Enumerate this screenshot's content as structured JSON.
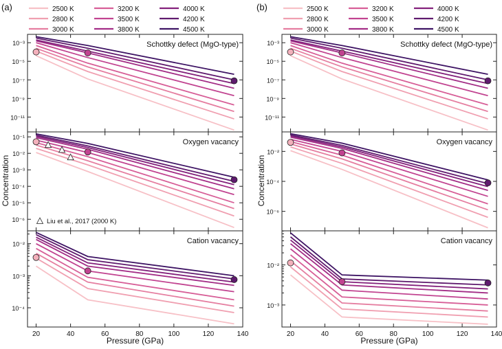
{
  "figure": {
    "xlabel": "Pressure (GPa)",
    "ylabel": "Concentration",
    "x_ticks": [
      20,
      40,
      60,
      80,
      100,
      120,
      140
    ],
    "xlim": [
      15,
      140
    ],
    "legend": {
      "labels": [
        "2500 K",
        "2800 K",
        "3000 K",
        "3200 K",
        "3500 K",
        "3800 K",
        "4000 K",
        "4200 K",
        "4500 K"
      ],
      "colors": [
        "#f7c0c6",
        "#f09fb0",
        "#e57ea0",
        "#d75e97",
        "#c14390",
        "#a32d86",
        "#82207b",
        "#5f1a6e",
        "#3e1464"
      ]
    },
    "liu_label": "Liu et al., 2017 (2000 K)"
  },
  "chart_data": [
    {
      "panel": "a",
      "panel_label": "(a)",
      "type": "line",
      "x": [
        20,
        50,
        135
      ],
      "subplots": [
        {
          "name": "schottky",
          "title": "Schottky defect (MgO-type)",
          "yscale": "log",
          "ylim_exp": [
            -12.6,
            -2.1
          ],
          "ticks": [
            {
              "exp": -3,
              "label": "10⁻³"
            },
            {
              "exp": -5,
              "label": "10⁻⁵"
            },
            {
              "exp": -7,
              "label": "10⁻⁷"
            },
            {
              "exp": -9,
              "label": "10⁻⁹"
            },
            {
              "exp": -11,
              "label": "10⁻¹¹"
            }
          ],
          "series": [
            {
              "name": "2500 K",
              "log10": [
                -4.4,
                -6.9,
                -12.4
              ]
            },
            {
              "name": "2800 K",
              "log10": [
                -3.9,
                -6.1,
                -11.2
              ]
            },
            {
              "name": "3000 K",
              "log10": [
                -3.6,
                -5.6,
                -10.4
              ]
            },
            {
              "name": "3200 K",
              "log10": [
                -3.3,
                -5.2,
                -9.7
              ]
            },
            {
              "name": "3500 K",
              "log10": [
                -3.0,
                -4.6,
                -8.7
              ]
            },
            {
              "name": "3800 K",
              "log10": [
                -2.8,
                -4.1,
                -7.9
              ]
            },
            {
              "name": "4000 K",
              "log10": [
                -2.7,
                -3.9,
                -7.4
              ]
            },
            {
              "name": "4200 K",
              "log10": [
                -2.5,
                -3.6,
                -7.0
              ]
            },
            {
              "name": "4500 K",
              "log10": [
                -2.35,
                -3.3,
                -6.4
              ]
            }
          ],
          "markers": [
            {
              "x": 20,
              "log10": -4.0,
              "color": "#f3b0bb"
            },
            {
              "x": 50,
              "log10": -4.1,
              "color": "#c14390"
            },
            {
              "x": 135,
              "log10": -7.1,
              "color": "#5f1a6e"
            }
          ]
        },
        {
          "name": "oxygen",
          "title": "Oxygen vacancy",
          "yscale": "log",
          "ylim_exp": [
            -6.7,
            -0.7
          ],
          "ticks": [
            {
              "exp": -1,
              "label": "10⁻¹"
            },
            {
              "exp": -2,
              "label": "10⁻²"
            },
            {
              "exp": -3,
              "label": "10⁻³"
            },
            {
              "exp": -4,
              "label": "10⁻⁴"
            },
            {
              "exp": -5,
              "label": "10⁻⁵"
            },
            {
              "exp": -6,
              "label": "10⁻⁶"
            }
          ],
          "series": [
            {
              "name": "2500 K",
              "log10": [
                -1.95,
                -3.1,
                -6.5
              ]
            },
            {
              "name": "2800 K",
              "log10": [
                -1.7,
                -2.7,
                -5.8
              ]
            },
            {
              "name": "3000 K",
              "log10": [
                -1.5,
                -2.45,
                -5.35
              ]
            },
            {
              "name": "3200 K",
              "log10": [
                -1.35,
                -2.2,
                -5.0
              ]
            },
            {
              "name": "3500 K",
              "log10": [
                -1.2,
                -1.95,
                -4.5
              ]
            },
            {
              "name": "3800 K",
              "log10": [
                -1.05,
                -1.75,
                -4.15
              ]
            },
            {
              "name": "4000 K",
              "log10": [
                -0.97,
                -1.65,
                -3.9
              ]
            },
            {
              "name": "4200 K",
              "log10": [
                -0.9,
                -1.55,
                -3.7
              ]
            },
            {
              "name": "4500 K",
              "log10": [
                -0.82,
                -1.4,
                -3.45
              ]
            }
          ],
          "markers": [
            {
              "x": 20,
              "log10": -1.3,
              "color": "#f3b0bb"
            },
            {
              "x": 50,
              "log10": -1.92,
              "color": "#c14390"
            },
            {
              "x": 135,
              "log10": -3.6,
              "color": "#5f1a6e"
            }
          ],
          "liu_points": [
            {
              "x": 27,
              "log10": -1.5
            },
            {
              "x": 35,
              "log10": -1.8
            },
            {
              "x": 40,
              "log10": -2.25
            }
          ]
        },
        {
          "name": "cation",
          "title": "Cation vacancy",
          "yscale": "log",
          "ylim_exp": [
            -4.6,
            -1.6
          ],
          "ticks": [
            {
              "exp": -2,
              "label": "10⁻²"
            },
            {
              "exp": -3,
              "label": "10⁻³"
            },
            {
              "exp": -4,
              "label": "10⁻⁴"
            }
          ],
          "series": [
            {
              "name": "2500 K",
              "log10": [
                -2.7,
                -3.75,
                -4.5
              ]
            },
            {
              "name": "2800 K",
              "log10": [
                -2.45,
                -3.4,
                -4.15
              ]
            },
            {
              "name": "3000 K",
              "log10": [
                -2.3,
                -3.2,
                -3.95
              ]
            },
            {
              "name": "3200 K",
              "log10": [
                -2.15,
                -3.05,
                -3.75
              ]
            },
            {
              "name": "3500 K",
              "log10": [
                -2.0,
                -2.85,
                -3.5
              ]
            },
            {
              "name": "3800 K",
              "log10": [
                -1.87,
                -2.7,
                -3.3
              ]
            },
            {
              "name": "4000 K",
              "log10": [
                -1.8,
                -2.6,
                -3.2
              ]
            },
            {
              "name": "4200 K",
              "log10": [
                -1.72,
                -2.5,
                -3.1
              ]
            },
            {
              "name": "4500 K",
              "log10": [
                -1.65,
                -2.4,
                -3.0
              ]
            }
          ],
          "markers": [
            {
              "x": 20,
              "log10": -2.43,
              "color": "#f3b0bb"
            },
            {
              "x": 50,
              "log10": -2.85,
              "color": "#c14390"
            },
            {
              "x": 135,
              "log10": -3.12,
              "color": "#5f1a6e"
            }
          ]
        }
      ]
    },
    {
      "panel": "b",
      "panel_label": "(b)",
      "type": "line",
      "x": [
        20,
        50,
        135
      ],
      "subplots": [
        {
          "name": "schottky",
          "title": "Schottky defect (MgO-type)",
          "yscale": "log",
          "ylim_exp": [
            -12.6,
            -2.1
          ],
          "ticks": [
            {
              "exp": -3,
              "label": "10⁻³"
            },
            {
              "exp": -5,
              "label": "10⁻⁵"
            },
            {
              "exp": -7,
              "label": "10⁻⁷"
            },
            {
              "exp": -9,
              "label": "10⁻⁹"
            },
            {
              "exp": -11,
              "label": "10⁻¹¹"
            }
          ],
          "series": [
            {
              "name": "2500 K",
              "log10": [
                -4.4,
                -6.9,
                -12.4
              ]
            },
            {
              "name": "2800 K",
              "log10": [
                -3.9,
                -6.1,
                -11.2
              ]
            },
            {
              "name": "3000 K",
              "log10": [
                -3.6,
                -5.6,
                -10.4
              ]
            },
            {
              "name": "3200 K",
              "log10": [
                -3.3,
                -5.2,
                -9.7
              ]
            },
            {
              "name": "3500 K",
              "log10": [
                -3.0,
                -4.6,
                -8.7
              ]
            },
            {
              "name": "3800 K",
              "log10": [
                -2.8,
                -4.1,
                -7.9
              ]
            },
            {
              "name": "4000 K",
              "log10": [
                -2.7,
                -3.9,
                -7.4
              ]
            },
            {
              "name": "4200 K",
              "log10": [
                -2.5,
                -3.6,
                -7.0
              ]
            },
            {
              "name": "4500 K",
              "log10": [
                -2.35,
                -3.3,
                -6.4
              ]
            }
          ],
          "markers": [
            {
              "x": 20,
              "log10": -4.0,
              "color": "#f3b0bb"
            },
            {
              "x": 50,
              "log10": -4.1,
              "color": "#c14390"
            },
            {
              "x": 135,
              "log10": -7.1,
              "color": "#5f1a6e"
            }
          ]
        },
        {
          "name": "oxygen",
          "title": "Oxygen vacancy",
          "yscale": "log",
          "ylim_exp": [
            -7.3,
            -0.7
          ],
          "ticks": [
            {
              "exp": -2,
              "label": "10⁻²"
            },
            {
              "exp": -4,
              "label": "10⁻⁴"
            },
            {
              "exp": -6,
              "label": "10⁻⁶"
            }
          ],
          "series": [
            {
              "name": "2500 K",
              "log10": [
                -1.95,
                -3.2,
                -7.1
              ]
            },
            {
              "name": "2800 K",
              "log10": [
                -1.7,
                -2.8,
                -6.4
              ]
            },
            {
              "name": "3000 K",
              "log10": [
                -1.5,
                -2.5,
                -5.9
              ]
            },
            {
              "name": "3200 K",
              "log10": [
                -1.35,
                -2.25,
                -5.5
              ]
            },
            {
              "name": "3500 K",
              "log10": [
                -1.2,
                -2.0,
                -5.0
              ]
            },
            {
              "name": "3800 K",
              "log10": [
                -1.05,
                -1.8,
                -4.6
              ]
            },
            {
              "name": "4000 K",
              "log10": [
                -0.97,
                -1.7,
                -4.35
              ]
            },
            {
              "name": "4200 K",
              "log10": [
                -0.9,
                -1.6,
                -4.15
              ]
            },
            {
              "name": "4500 K",
              "log10": [
                -0.82,
                -1.45,
                -3.9
              ]
            }
          ],
          "markers": [
            {
              "x": 20,
              "log10": -1.4,
              "color": "#f3b0bb"
            },
            {
              "x": 50,
              "log10": -2.1,
              "color": "#c14390"
            },
            {
              "x": 135,
              "log10": -4.1,
              "color": "#5f1a6e"
            }
          ]
        },
        {
          "name": "cation",
          "title": "Cation vacancy",
          "yscale": "log",
          "ylim_exp": [
            -3.55,
            -1.15
          ],
          "ticks": [
            {
              "exp": -2,
              "label": "10⁻²"
            },
            {
              "exp": -3,
              "label": "10⁻³"
            }
          ],
          "series": [
            {
              "name": "2500 K",
              "log10": [
                -2.25,
                -3.3,
                -3.48
              ]
            },
            {
              "name": "2800 K",
              "log10": [
                -2.05,
                -3.1,
                -3.3
              ]
            },
            {
              "name": "3000 K",
              "log10": [
                -1.9,
                -2.95,
                -3.15
              ]
            },
            {
              "name": "3200 K",
              "log10": [
                -1.75,
                -2.8,
                -3.0
              ]
            },
            {
              "name": "3500 K",
              "log10": [
                -1.6,
                -2.63,
                -2.85
              ]
            },
            {
              "name": "3800 K",
              "log10": [
                -1.47,
                -2.5,
                -2.7
              ]
            },
            {
              "name": "4000 K",
              "log10": [
                -1.38,
                -2.42,
                -2.6
              ]
            },
            {
              "name": "4200 K",
              "log10": [
                -1.3,
                -2.35,
                -2.5
              ]
            },
            {
              "name": "4500 K",
              "log10": [
                -1.2,
                -2.25,
                -2.38
              ]
            }
          ],
          "markers": [
            {
              "x": 20,
              "log10": -1.95,
              "color": "#f3b0bb"
            },
            {
              "x": 50,
              "log10": -2.42,
              "color": "#c14390"
            },
            {
              "x": 135,
              "log10": -2.45,
              "color": "#5f1a6e"
            }
          ]
        }
      ]
    }
  ]
}
